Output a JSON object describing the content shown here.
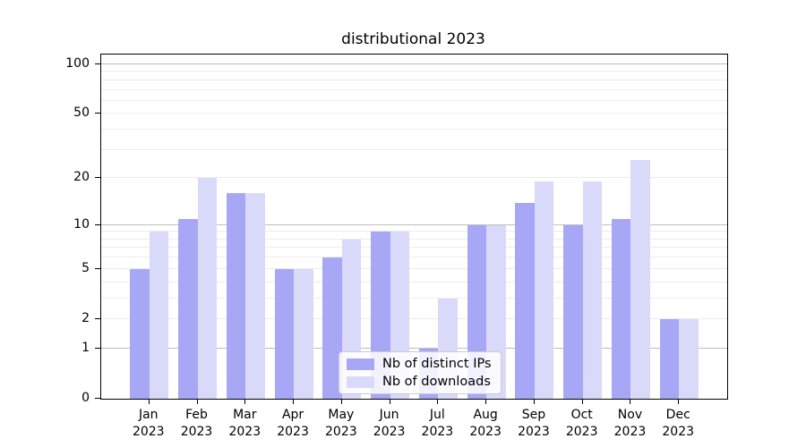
{
  "title": "distributional 2023",
  "chart_data": {
    "type": "bar",
    "title": "distributional 2023",
    "categories": [
      "Jan",
      "Feb",
      "Mar",
      "Apr",
      "May",
      "Jun",
      "Jul",
      "Aug",
      "Sep",
      "Oct",
      "Nov",
      "Dec"
    ],
    "x_tick_second_line": "2023",
    "series": [
      {
        "name": "Nb of distinct IPs",
        "color": "#a7a7f6",
        "values": [
          5,
          11,
          16,
          5,
          6,
          9,
          1,
          10,
          14,
          10,
          11,
          2
        ]
      },
      {
        "name": "Nb of downloads",
        "color": "#d9d9fa",
        "values": [
          9,
          20,
          16,
          5,
          8,
          9,
          3,
          10,
          19,
          19,
          26,
          2
        ]
      }
    ],
    "xlabel": "",
    "ylabel": "",
    "yscale": "log1p",
    "ylim": [
      0,
      115
    ],
    "yticks": [
      0,
      1,
      2,
      5,
      10,
      20,
      50,
      100
    ],
    "major_gridlines": [
      1,
      10,
      100
    ],
    "minor_gridlines": [
      2,
      3,
      4,
      5,
      6,
      7,
      8,
      9,
      20,
      30,
      40,
      50,
      60,
      70,
      80,
      90
    ],
    "grid": true,
    "legend_position": "lower center",
    "bar_group_width_fraction": 0.8
  }
}
